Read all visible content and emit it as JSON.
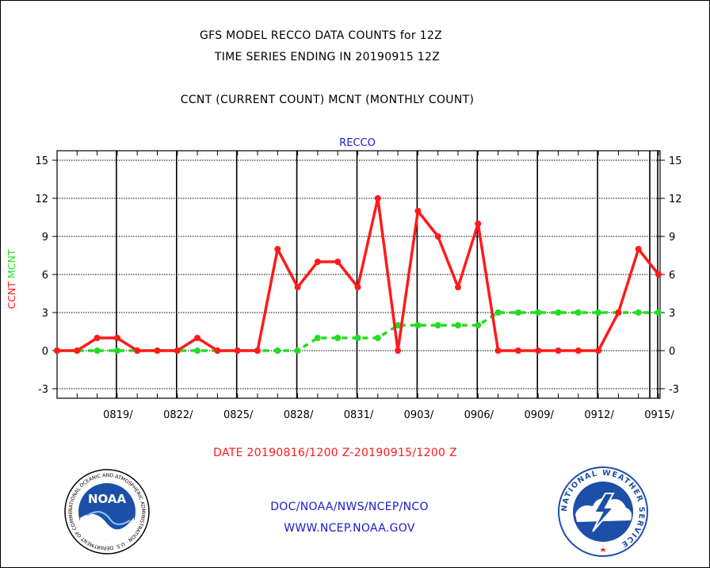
{
  "header": {
    "title_line1": "GFS MODEL RECCO DATA COUNTS for 12Z",
    "title_line2": "TIME SERIES ENDING IN 20190915 12Z",
    "subtitle": "CCNT (CURRENT COUNT) MCNT (MONTHLY COUNT)"
  },
  "footer": {
    "date_range": "DATE 20190816/1200 Z-20190915/1200 Z",
    "org_line": "DOC/NOAA/NWS/NCEP/NCO",
    "url": "WWW.NCEP.NOAA.GOV"
  },
  "logos": {
    "noaa_text": "NOAA",
    "nws_text": "NATIONAL WEATHER SERVICE",
    "noaa_ring_text": "NATIONAL OCEANIC AND ATMOSPHERIC ADMINISTRATION · U.S. DEPARTMENT OF COMMERCE"
  },
  "colors": {
    "ccnt": "#ff1a1a",
    "mcnt": "#22dd22",
    "title_blue": "#1a1acc",
    "date_red": "#ff1a1a"
  },
  "chart_data": {
    "type": "line",
    "title": "RECCO",
    "ylabel_left": [
      "CCNT",
      "MCNT"
    ],
    "ylim": [
      -4,
      16
    ],
    "yticks": [
      -3,
      0,
      3,
      6,
      9,
      12,
      15
    ],
    "xlim": [
      0,
      30
    ],
    "xtick_labels": [
      "0819/",
      "0822/",
      "0825/",
      "0828/",
      "0831/",
      "0903/",
      "0906/",
      "0909/",
      "0912/",
      "0915/"
    ],
    "xtick_positions": [
      3,
      6,
      9,
      12,
      15,
      18,
      21,
      24,
      27,
      30
    ],
    "grid": true,
    "series": [
      {
        "name": "CCNT",
        "color": "#ff1a1a",
        "style": "solid",
        "x": [
          0,
          1,
          2,
          3,
          4,
          5,
          6,
          7,
          8,
          9,
          10,
          11,
          12,
          13,
          14,
          15,
          16,
          17,
          18,
          19,
          20,
          21,
          22,
          23,
          24,
          25,
          26,
          27,
          28,
          29,
          30
        ],
        "values": [
          0,
          0,
          1,
          1,
          0,
          0,
          0,
          1,
          0,
          0,
          0,
          8,
          5,
          7,
          7,
          5,
          12,
          0,
          11,
          9,
          5,
          10,
          0,
          0,
          0,
          0,
          0,
          0,
          3,
          8,
          6
        ]
      },
      {
        "name": "MCNT",
        "color": "#22dd22",
        "style": "dashed",
        "x": [
          0,
          1,
          2,
          3,
          4,
          5,
          6,
          7,
          8,
          9,
          10,
          11,
          12,
          13,
          14,
          15,
          16,
          17,
          18,
          19,
          20,
          21,
          22,
          23,
          24,
          25,
          26,
          27,
          28,
          29,
          30
        ],
        "values": [
          0,
          0,
          0,
          0,
          0,
          0,
          0,
          0,
          0,
          0,
          0,
          0,
          0,
          1,
          1,
          1,
          1,
          2,
          2,
          2,
          2,
          2,
          3,
          3,
          3,
          3,
          3,
          3,
          3,
          3,
          3
        ]
      }
    ]
  }
}
